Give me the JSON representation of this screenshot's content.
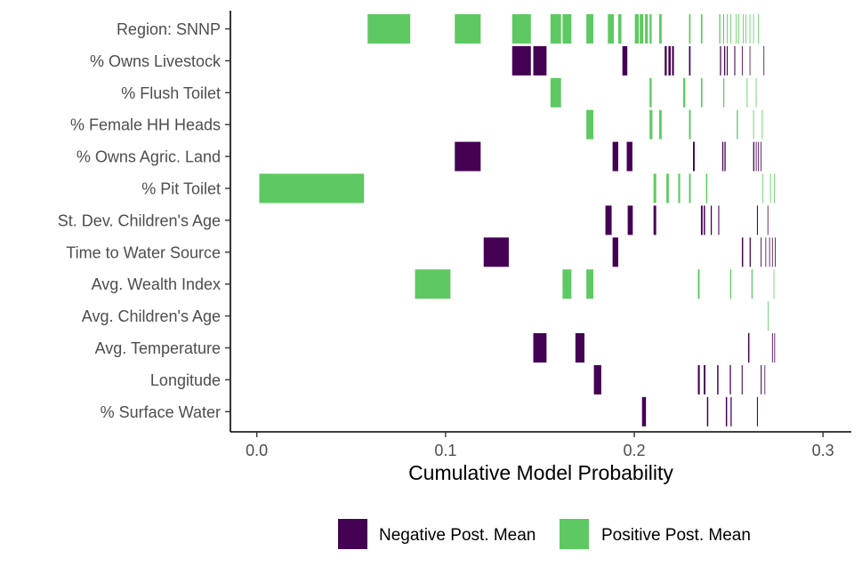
{
  "chart_data": {
    "type": "bar",
    "subtype": "model-inclusion-map",
    "title": "",
    "xlabel": "Cumulative Model Probability",
    "ylabel": "",
    "xlim": [
      -0.014,
      0.315
    ],
    "xticks": [
      0.0,
      0.1,
      0.2,
      0.3
    ],
    "xtick_labels": [
      "0.0",
      "0.1",
      "0.2",
      "0.3"
    ],
    "grid": false,
    "legend_position": "bottom",
    "colors": {
      "negative": "#440154",
      "positive": "#5ec962"
    },
    "legend": [
      {
        "key": "negative",
        "label": "Negative Post. Mean"
      },
      {
        "key": "positive",
        "label": "Positive Post. Mean"
      }
    ],
    "variables": [
      {
        "label": "Region: SNNP",
        "segments": [
          [
            "positive",
            0.0587,
            0.0813
          ],
          [
            "positive",
            0.1049,
            0.1186
          ],
          [
            "positive",
            0.1353,
            0.1452
          ],
          [
            "positive",
            0.1556,
            0.1612
          ],
          [
            "positive",
            0.162,
            0.1667
          ],
          [
            "positive",
            0.1746,
            0.1783
          ],
          [
            "positive",
            0.186,
            0.1892
          ],
          [
            "positive",
            0.1915,
            0.1932
          ],
          [
            "positive",
            0.2003,
            0.2024
          ],
          [
            "positive",
            0.2029,
            0.2048
          ],
          [
            "positive",
            0.2057,
            0.2072
          ],
          [
            "positive",
            0.2081,
            0.2092
          ],
          [
            "positive",
            0.2132,
            0.2145
          ],
          [
            "positive",
            0.229,
            0.2298
          ],
          [
            "positive",
            0.2353,
            0.2361
          ],
          [
            "positive",
            0.245,
            0.2456
          ],
          [
            "positive",
            0.2471,
            0.2476
          ],
          [
            "positive",
            0.249,
            0.2494
          ],
          [
            "positive",
            0.251,
            0.2514
          ],
          [
            "positive",
            0.2538,
            0.2541
          ],
          [
            "positive",
            0.2552,
            0.2555
          ],
          [
            "positive",
            0.2575,
            0.2578
          ],
          [
            "positive",
            0.259,
            0.2592
          ],
          [
            "positive",
            0.2611,
            0.2613
          ],
          [
            "positive",
            0.263,
            0.2632
          ],
          [
            "positive",
            0.2655,
            0.2657
          ]
        ]
      },
      {
        "label": "% Owns Livestock",
        "segments": [
          [
            "negative",
            0.1353,
            0.1452
          ],
          [
            "negative",
            0.1465,
            0.1535
          ],
          [
            "negative",
            0.1937,
            0.1963
          ],
          [
            "negative",
            0.2161,
            0.2172
          ],
          [
            "negative",
            0.2181,
            0.2193
          ],
          [
            "negative",
            0.22,
            0.221
          ],
          [
            "negative",
            0.229,
            0.2298
          ],
          [
            "negative",
            0.2454,
            0.246
          ],
          [
            "negative",
            0.2476,
            0.2482
          ],
          [
            "negative",
            0.249,
            0.2495
          ],
          [
            "negative",
            0.253,
            0.2535
          ],
          [
            "negative",
            0.257,
            0.2574
          ],
          [
            "negative",
            0.2611,
            0.2614
          ],
          [
            "negative",
            0.2685,
            0.2687
          ]
        ]
      },
      {
        "label": "% Flush Toilet",
        "segments": [
          [
            "positive",
            0.1556,
            0.1612
          ],
          [
            "positive",
            0.2081,
            0.2092
          ],
          [
            "positive",
            0.2259,
            0.227
          ],
          [
            "positive",
            0.2353,
            0.2361
          ],
          [
            "positive",
            0.2471,
            0.2477
          ],
          [
            "positive",
            0.2596,
            0.26
          ],
          [
            "positive",
            0.2644,
            0.2647
          ]
        ]
      },
      {
        "label": "% Female HH Heads",
        "segments": [
          [
            "positive",
            0.1746,
            0.1783
          ],
          [
            "positive",
            0.2081,
            0.2096
          ],
          [
            "positive",
            0.2132,
            0.2145
          ],
          [
            "positive",
            0.229,
            0.2299
          ],
          [
            "positive",
            0.2543,
            0.2549
          ],
          [
            "positive",
            0.263,
            0.2634
          ],
          [
            "positive",
            0.2676,
            0.2678
          ]
        ]
      },
      {
        "label": "% Owns Agric. Land",
        "segments": [
          [
            "negative",
            0.1049,
            0.1186
          ],
          [
            "negative",
            0.1885,
            0.1915
          ],
          [
            "negative",
            0.196,
            0.199
          ],
          [
            "negative",
            0.2311,
            0.232
          ],
          [
            "negative",
            0.2466,
            0.2472
          ],
          [
            "negative",
            0.2478,
            0.2484
          ],
          [
            "negative",
            0.263,
            0.2636
          ],
          [
            "negative",
            0.2644,
            0.2648
          ],
          [
            "negative",
            0.2655,
            0.2658
          ],
          [
            "negative",
            0.267,
            0.2672
          ]
        ]
      },
      {
        "label": "% Pit Toilet",
        "segments": [
          [
            "positive",
            0.0013,
            0.0568
          ],
          [
            "positive",
            0.2102,
            0.2116
          ],
          [
            "positive",
            0.217,
            0.2183
          ],
          [
            "positive",
            0.2233,
            0.2243
          ],
          [
            "positive",
            0.229,
            0.2299
          ],
          [
            "positive",
            0.238,
            0.2387
          ],
          [
            "positive",
            0.268,
            0.2683
          ],
          [
            "positive",
            0.272,
            0.2722
          ],
          [
            "positive",
            0.274,
            0.2742
          ]
        ]
      },
      {
        "label": "St. Dev. Children's Age",
        "segments": [
          [
            "negative",
            0.1847,
            0.188
          ],
          [
            "negative",
            0.1965,
            0.1992
          ],
          [
            "negative",
            0.2102,
            0.2116
          ],
          [
            "negative",
            0.2353,
            0.2362
          ],
          [
            "negative",
            0.2368,
            0.2375
          ],
          [
            "negative",
            0.2405,
            0.2411
          ],
          [
            "negative",
            0.2445,
            0.245
          ],
          [
            "negative",
            0.265,
            0.2655
          ],
          [
            "negative",
            0.2706,
            0.2708
          ]
        ]
      },
      {
        "label": "Time to Water Source",
        "segments": [
          [
            "negative",
            0.1202,
            0.1335
          ],
          [
            "negative",
            0.1885,
            0.1915
          ],
          [
            "negative",
            0.257,
            0.2577
          ],
          [
            "negative",
            0.2611,
            0.2617
          ],
          [
            "negative",
            0.267,
            0.2674
          ],
          [
            "negative",
            0.2695,
            0.2698
          ],
          [
            "negative",
            0.2715,
            0.2718
          ],
          [
            "negative",
            0.273,
            0.2733
          ],
          [
            "negative",
            0.2745,
            0.2747
          ]
        ]
      },
      {
        "label": "Avg. Wealth Index",
        "segments": [
          [
            "positive",
            0.0838,
            0.1026
          ],
          [
            "positive",
            0.162,
            0.1667
          ],
          [
            "positive",
            0.1746,
            0.1783
          ],
          [
            "positive",
            0.2337,
            0.2346
          ],
          [
            "positive",
            0.2508,
            0.2514
          ],
          [
            "positive",
            0.2621,
            0.2627
          ],
          [
            "positive",
            0.2738,
            0.274
          ]
        ]
      },
      {
        "label": "Avg. Children's Age",
        "segments": [
          [
            "positive",
            0.2707,
            0.2709
          ]
        ]
      },
      {
        "label": "Avg. Temperature",
        "segments": [
          [
            "negative",
            0.1465,
            0.1535
          ],
          [
            "negative",
            0.1688,
            0.1736
          ],
          [
            "negative",
            0.2603,
            0.261
          ],
          [
            "negative",
            0.273,
            0.2734
          ],
          [
            "negative",
            0.2742,
            0.2745
          ]
        ]
      },
      {
        "label": "Longitude",
        "segments": [
          [
            "negative",
            0.1786,
            0.1825
          ],
          [
            "negative",
            0.2337,
            0.2347
          ],
          [
            "negative",
            0.2368,
            0.2377
          ],
          [
            "negative",
            0.2439,
            0.2446
          ],
          [
            "negative",
            0.2506,
            0.2512
          ],
          [
            "negative",
            0.2569,
            0.2574
          ],
          [
            "negative",
            0.267,
            0.2675
          ],
          [
            "negative",
            0.269,
            0.2693
          ]
        ]
      },
      {
        "label": "% Surface Water",
        "segments": [
          [
            "negative",
            0.2041,
            0.2062
          ],
          [
            "negative",
            0.2385,
            0.2392
          ],
          [
            "negative",
            0.2485,
            0.2492
          ],
          [
            "negative",
            0.251,
            0.2516
          ],
          [
            "negative",
            0.265,
            0.2655
          ]
        ]
      }
    ]
  }
}
